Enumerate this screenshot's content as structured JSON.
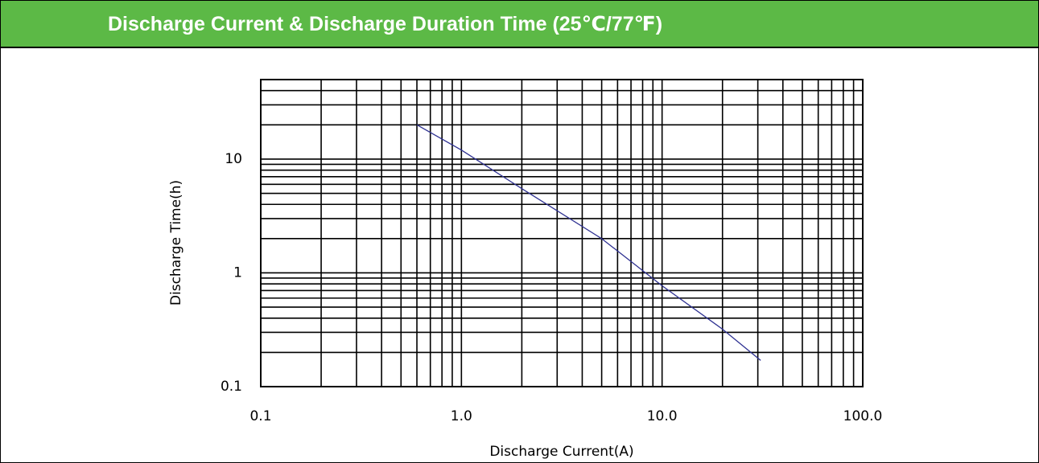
{
  "chart_data": {
    "type": "line",
    "title": "Discharge Current & Discharge Duration Time (25℃/77℉)",
    "xlabel": "Discharge Current(A)",
    "ylabel": "Discharge Time(h)",
    "xscale": "log",
    "yscale": "log",
    "xlim": [
      0.1,
      100
    ],
    "ylim": [
      0.1,
      50
    ],
    "xticks": [
      {
        "value": 0.1,
        "label": "0.1"
      },
      {
        "value": 1,
        "label": "1.0"
      },
      {
        "value": 10,
        "label": "10.0"
      },
      {
        "value": 100,
        "label": "100.0"
      }
    ],
    "yticks": [
      0.1,
      1,
      10
    ],
    "grid": true,
    "xgrid": [
      0.2,
      0.3,
      0.4,
      0.5,
      0.6,
      0.7,
      0.8,
      0.9,
      2,
      3,
      4,
      5,
      6,
      7,
      8,
      9,
      20,
      30,
      40,
      50,
      60,
      70,
      80,
      90
    ],
    "ygrid": [
      0.2,
      0.3,
      0.4,
      0.5,
      0.6,
      0.7,
      0.8,
      0.9,
      2,
      3,
      4,
      5,
      6,
      7,
      8,
      9,
      20,
      30,
      40
    ],
    "series": [
      {
        "color": "#2e3192",
        "x": [
          0.6,
          1,
          2,
          5,
          10,
          20,
          31
        ],
        "values": [
          20,
          12,
          5.5,
          2,
          0.77,
          0.32,
          0.17
        ]
      }
    ]
  }
}
